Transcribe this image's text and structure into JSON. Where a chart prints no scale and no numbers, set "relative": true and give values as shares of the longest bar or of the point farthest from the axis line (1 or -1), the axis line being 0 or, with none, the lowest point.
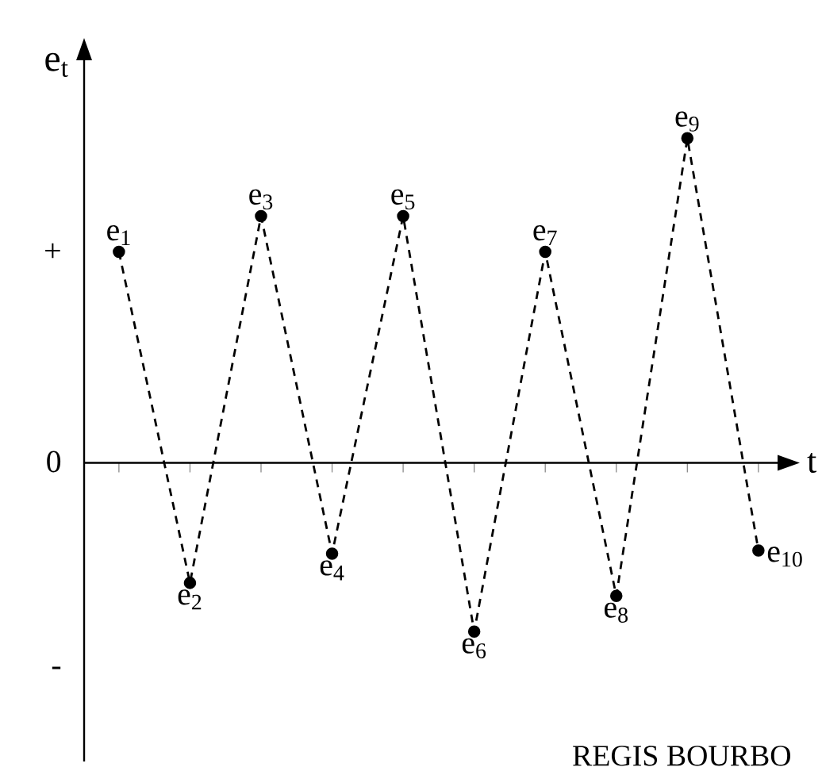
{
  "chart_data": {
    "type": "line",
    "ylabel": "e$_{t}$",
    "xlabel": "t",
    "relative": true,
    "categories": [
      "e$_{1}$",
      "e$_{2}$",
      "e$_{3}$",
      "e$_{4}$",
      "e$_{5}$",
      "e$_{6}$",
      "e$_{7}$",
      "e$_{8}$",
      "e$_{9}$",
      "e$_{10}$"
    ],
    "values": [
      0.65,
      -0.37,
      0.76,
      -0.28,
      0.76,
      -0.52,
      0.65,
      -0.41,
      1,
      -0.27
    ],
    "color": "#000000",
    "marker": "circle",
    "line_style": "dashed",
    "annotations": [
      "+",
      "0",
      "-",
      "REGIS BOURBO"
    ]
  }
}
